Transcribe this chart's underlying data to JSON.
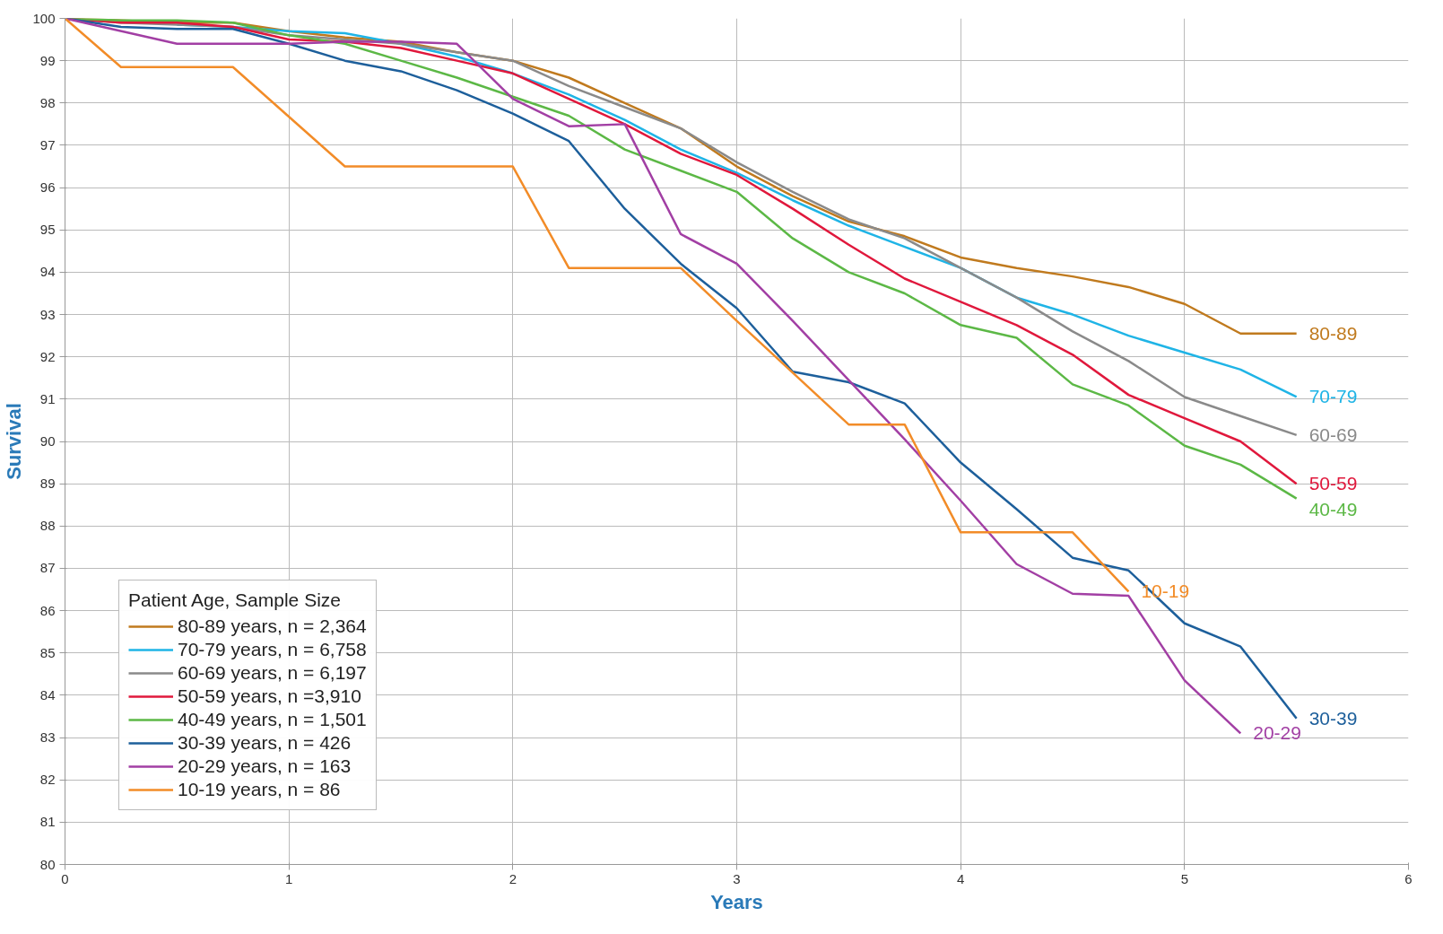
{
  "chart_data": {
    "type": "line",
    "xlabel": "Years",
    "ylabel": "Survival",
    "legend_title": "Patient Age, Sample Size",
    "legend": "bottom left",
    "grid": true,
    "marker": "none",
    "line_style": "solid",
    "xlim": [
      0,
      6
    ],
    "xticks": [
      0,
      1,
      2,
      3,
      4,
      5,
      6
    ],
    "ylim": [
      80,
      100
    ],
    "yticks": [
      80,
      81,
      82,
      83,
      84,
      85,
      86,
      87,
      88,
      89,
      90,
      91,
      92,
      93,
      94,
      95,
      96,
      97,
      98,
      99,
      100
    ],
    "x": [
      0,
      0.25,
      0.5,
      0.75,
      1,
      1.25,
      1.5,
      1.75,
      2,
      2.25,
      2.5,
      2.75,
      3,
      3.25,
      3.5,
      3.75,
      4,
      4.25,
      4.5,
      4.75,
      5,
      5.25,
      5.5
    ],
    "series": [
      {
        "name": "80-89 years, n = 2,364",
        "color": "#c07a1e",
        "values": [
          100,
          99.95,
          99.9,
          99.9,
          99.7,
          99.55,
          99.45,
          99.2,
          99.0,
          98.6,
          98.0,
          97.4,
          96.5,
          95.8,
          95.2,
          94.85,
          94.35,
          94.1,
          93.9,
          93.65,
          93.25,
          92.55,
          92.55
        ]
      },
      {
        "name": "70-79 years, n = 6,758",
        "color": "#1fb4e6",
        "values": [
          null,
          null,
          99.85,
          99.8,
          99.7,
          99.65,
          99.4,
          99.1,
          98.7,
          98.2,
          97.6,
          96.9,
          96.35,
          95.7,
          95.1,
          94.6,
          94.1,
          93.4,
          93.0,
          92.5,
          92.1,
          91.7,
          91.05
        ]
      },
      {
        "name": "60-69 years, n = 6,197",
        "color": "#8a8a8a",
        "values": [
          100,
          99.9,
          99.85,
          99.8,
          99.6,
          99.5,
          99.4,
          99.2,
          99.0,
          98.4,
          97.9,
          97.4,
          96.6,
          95.9,
          95.25,
          94.8,
          94.1,
          93.4,
          92.6,
          91.9,
          91.05,
          90.6,
          90.15
        ]
      },
      {
        "name": "50-59 years, n =3,910",
        "color": "#e0183c",
        "values": [
          100,
          99.9,
          99.9,
          99.8,
          99.5,
          99.45,
          99.3,
          99.0,
          98.7,
          98.1,
          97.5,
          96.8,
          96.3,
          95.5,
          94.65,
          93.85,
          93.3,
          92.75,
          92.05,
          91.1,
          90.55,
          90.0,
          89.0
        ]
      },
      {
        "name": "40-49 years, n = 1,501",
        "color": "#5cb846",
        "values": [
          100,
          99.95,
          99.95,
          99.9,
          99.6,
          99.4,
          99.0,
          98.6,
          98.15,
          97.7,
          96.9,
          96.4,
          95.9,
          94.8,
          94.0,
          93.5,
          92.75,
          92.45,
          91.35,
          90.85,
          89.9,
          89.45,
          88.65
        ]
      },
      {
        "name": "30-39 years, n = 426",
        "color": "#1d5f9b",
        "values": [
          100,
          99.8,
          99.75,
          99.75,
          99.4,
          99.0,
          98.75,
          98.3,
          97.75,
          97.1,
          95.5,
          94.2,
          93.15,
          91.65,
          91.4,
          90.9,
          89.5,
          88.4,
          87.25,
          86.95,
          85.7,
          85.15,
          83.45
        ]
      },
      {
        "name": "20-29 years, n = 163",
        "color": "#a23fa4",
        "x": [
          0,
          0.5,
          1,
          1.25,
          1.5,
          1.75,
          2,
          2.25,
          2.5,
          2.75,
          3,
          3.25,
          3.5,
          3.75,
          4,
          4.25,
          4.5,
          4.75,
          5,
          5.25
        ],
        "values": [
          100,
          99.4,
          99.4,
          99.45,
          99.45,
          99.4,
          98.1,
          97.45,
          97.5,
          94.9,
          94.2,
          92.85,
          91.45,
          90.05,
          88.6,
          87.1,
          86.4,
          86.35,
          84.35,
          83.1
        ]
      },
      {
        "name": "10-19 years, n = 86",
        "color": "#f28c28",
        "x": [
          0,
          0.25,
          0.75,
          1.25,
          2,
          2.25,
          2.75,
          3,
          3.5,
          3.75,
          4,
          4.5,
          4.75
        ],
        "values": [
          100,
          98.85,
          98.85,
          96.5,
          96.5,
          94.1,
          94.1,
          92.85,
          90.4,
          90.4,
          87.85,
          87.85,
          86.45
        ]
      }
    ],
    "annotations": [
      {
        "text": "80-89",
        "x": 5.5,
        "y": 92.55
      },
      {
        "text": "70-79",
        "x": 5.5,
        "y": 91.05
      },
      {
        "text": "60-69",
        "x": 5.5,
        "y": 90.15
      },
      {
        "text": "50-59",
        "x": 5.5,
        "y": 89.0
      },
      {
        "text": "40-49",
        "x": 5.5,
        "y": 88.65
      },
      {
        "text": "10-19",
        "x": 4.75,
        "y": 86.45
      },
      {
        "text": "30-39",
        "x": 5.5,
        "y": 83.45
      },
      {
        "text": "20-29",
        "x": 5.25,
        "y": 83.1
      }
    ]
  }
}
